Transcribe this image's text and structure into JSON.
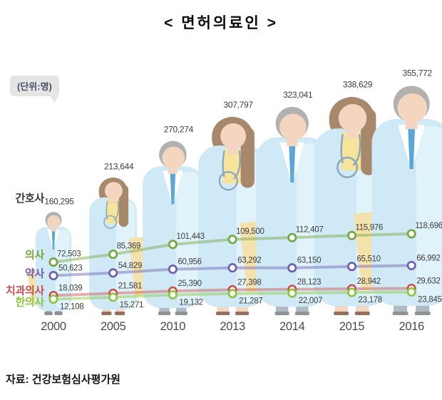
{
  "title": "< 면허의료인 >",
  "unit_label": "(단위:명)",
  "source": "자료: 건강보험심사평가원",
  "illustration": {
    "skin": "#f3d5c0",
    "coat": "#cfe9f6",
    "coat_light": "#e3f4fb",
    "hair_male": "#b3b1b0",
    "hair_female": "#a8886a",
    "folder": "#f4e2ad",
    "tie": "#5aa7d8",
    "stethoscope": "#8ba7bd",
    "legs_male": "#aeb9c2",
    "shoes_male": "#8d9399",
    "shoes_female": "#95705f",
    "inner_top_female": "#f6e49a"
  },
  "chart_data": {
    "type": "line",
    "subtype": "pictograph-line",
    "title": "< 면허의료인 >",
    "unit": "(단위:명)",
    "legend_position": "left",
    "grid": false,
    "categories": [
      "2000",
      "2005",
      "2010",
      "2013",
      "2014",
      "2015",
      "2016"
    ],
    "figure_genders": [
      "male",
      "female",
      "male",
      "female",
      "male",
      "female",
      "male"
    ],
    "series": [
      {
        "name": "간호사",
        "render": "figures",
        "color": "#3a3a3a",
        "values": [
          160295,
          213644,
          270274,
          307797,
          323041,
          338629,
          355772
        ]
      },
      {
        "name": "의사",
        "render": "line",
        "color": "#74a73f",
        "values": [
          72503,
          85369,
          101443,
          109500,
          112407,
          115976,
          118696
        ]
      },
      {
        "name": "약사",
        "render": "line",
        "color": "#6f5fb0",
        "values": [
          50623,
          54829,
          60956,
          63292,
          63150,
          65510,
          66992
        ]
      },
      {
        "name": "치과의사",
        "render": "line",
        "color": "#cc4f4f",
        "values": [
          18039,
          21581,
          25390,
          27398,
          28123,
          28942,
          29632
        ]
      },
      {
        "name": "한의사",
        "render": "line",
        "color": "#8cc63f",
        "values": [
          12108,
          15271,
          19132,
          21287,
          22007,
          23178,
          23845
        ]
      }
    ],
    "text_colors": {
      "value_label": "#3d3d3d",
      "year_label": "#4a4a4a"
    }
  }
}
